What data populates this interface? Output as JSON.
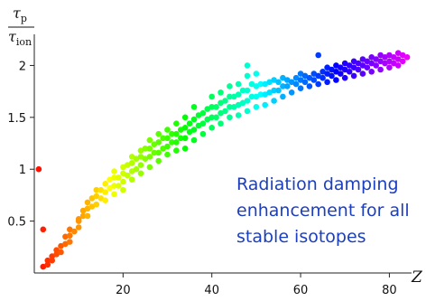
{
  "chart_data": {
    "type": "scatter",
    "title": "",
    "xlabel": "Z",
    "ylabel": {
      "numerator": "τ",
      "numerator_sub": "p",
      "denominator": "τ",
      "denominator_sub": "ion"
    },
    "xlim": [
      0,
      85
    ],
    "ylim": [
      0,
      2.3
    ],
    "x_ticks": [
      20,
      40,
      60,
      80
    ],
    "y_ticks": [
      0.5,
      1,
      1.5,
      2
    ],
    "grid": false,
    "annotation": [
      "Radiation damping",
      "enhancement for all",
      "stable isotopes"
    ],
    "color_by": "x (rainbow hue: red at low Z to magenta at high Z)",
    "series": [
      {
        "points": [
          [
            1,
            1.0
          ],
          [
            2,
            0.42
          ],
          [
            2,
            0.06
          ],
          [
            3,
            0.08
          ],
          [
            3,
            0.12
          ],
          [
            4,
            0.12
          ],
          [
            4,
            0.16
          ],
          [
            5,
            0.18
          ],
          [
            5,
            0.22
          ],
          [
            6,
            0.2
          ],
          [
            6,
            0.26
          ],
          [
            7,
            0.28
          ],
          [
            7,
            0.35
          ],
          [
            8,
            0.3
          ],
          [
            8,
            0.36
          ],
          [
            8,
            0.42
          ],
          [
            9,
            0.4
          ],
          [
            10,
            0.44
          ],
          [
            10,
            0.5
          ],
          [
            10,
            0.52
          ],
          [
            11,
            0.55
          ],
          [
            11,
            0.6
          ],
          [
            12,
            0.55
          ],
          [
            12,
            0.62
          ],
          [
            12,
            0.68
          ],
          [
            13,
            0.64
          ],
          [
            13,
            0.72
          ],
          [
            14,
            0.66
          ],
          [
            14,
            0.74
          ],
          [
            14,
            0.8
          ],
          [
            15,
            0.72
          ],
          [
            15,
            0.8
          ],
          [
            16,
            0.7
          ],
          [
            16,
            0.78
          ],
          [
            16,
            0.86
          ],
          [
            17,
            0.82
          ],
          [
            17,
            0.9
          ],
          [
            18,
            0.76
          ],
          [
            18,
            0.84
          ],
          [
            18,
            0.92
          ],
          [
            18,
            0.98
          ],
          [
            19,
            0.84
          ],
          [
            19,
            0.92
          ],
          [
            20,
            0.8
          ],
          [
            20,
            0.88
          ],
          [
            20,
            0.96
          ],
          [
            20,
            1.02
          ],
          [
            21,
            0.94
          ],
          [
            21,
            1.04
          ],
          [
            22,
            0.9
          ],
          [
            22,
            0.98
          ],
          [
            22,
            1.06
          ],
          [
            22,
            1.12
          ],
          [
            23,
            1.0
          ],
          [
            23,
            1.1
          ],
          [
            24,
            0.96
          ],
          [
            24,
            1.04
          ],
          [
            24,
            1.12
          ],
          [
            24,
            1.18
          ],
          [
            25,
            1.1
          ],
          [
            25,
            1.2
          ],
          [
            26,
            1.02
          ],
          [
            26,
            1.12
          ],
          [
            26,
            1.2
          ],
          [
            26,
            1.28
          ],
          [
            27,
            1.16
          ],
          [
            27,
            1.24
          ],
          [
            28,
            1.08
          ],
          [
            28,
            1.16
          ],
          [
            28,
            1.26
          ],
          [
            28,
            1.34
          ],
          [
            29,
            1.2
          ],
          [
            29,
            1.3
          ],
          [
            30,
            1.14
          ],
          [
            30,
            1.22
          ],
          [
            30,
            1.3
          ],
          [
            30,
            1.38
          ],
          [
            31,
            1.26
          ],
          [
            31,
            1.34
          ],
          [
            32,
            1.18
          ],
          [
            32,
            1.26
          ],
          [
            32,
            1.34
          ],
          [
            32,
            1.44
          ],
          [
            33,
            1.3
          ],
          [
            33,
            1.38
          ],
          [
            34,
            1.2
          ],
          [
            34,
            1.3
          ],
          [
            34,
            1.4
          ],
          [
            34,
            1.5
          ],
          [
            35,
            1.36
          ],
          [
            35,
            1.44
          ],
          [
            36,
            1.28
          ],
          [
            36,
            1.38
          ],
          [
            36,
            1.48
          ],
          [
            36,
            1.6
          ],
          [
            37,
            1.42
          ],
          [
            37,
            1.52
          ],
          [
            38,
            1.34
          ],
          [
            38,
            1.44
          ],
          [
            38,
            1.54
          ],
          [
            39,
            1.48
          ],
          [
            39,
            1.58
          ],
          [
            40,
            1.4
          ],
          [
            40,
            1.5
          ],
          [
            40,
            1.6
          ],
          [
            40,
            1.7
          ],
          [
            41,
            1.5
          ],
          [
            41,
            1.6
          ],
          [
            42,
            1.44
          ],
          [
            42,
            1.54
          ],
          [
            42,
            1.64
          ],
          [
            42,
            1.74
          ],
          [
            43,
            1.56
          ],
          [
            43,
            1.66
          ],
          [
            44,
            1.5
          ],
          [
            44,
            1.6
          ],
          [
            44,
            1.7
          ],
          [
            44,
            1.8
          ],
          [
            45,
            1.6
          ],
          [
            45,
            1.7
          ],
          [
            46,
            1.52
          ],
          [
            46,
            1.62
          ],
          [
            46,
            1.72
          ],
          [
            46,
            1.82
          ],
          [
            47,
            1.64
          ],
          [
            47,
            1.76
          ],
          [
            48,
            1.56
          ],
          [
            48,
            1.66
          ],
          [
            48,
            1.76
          ],
          [
            48,
            1.9
          ],
          [
            48,
            2.0
          ],
          [
            49,
            1.7
          ],
          [
            49,
            1.82
          ],
          [
            50,
            1.6
          ],
          [
            50,
            1.7
          ],
          [
            50,
            1.8
          ],
          [
            50,
            1.92
          ],
          [
            51,
            1.72
          ],
          [
            51,
            1.82
          ],
          [
            52,
            1.62
          ],
          [
            52,
            1.72
          ],
          [
            52,
            1.82
          ],
          [
            53,
            1.74
          ],
          [
            53,
            1.84
          ],
          [
            54,
            1.66
          ],
          [
            54,
            1.76
          ],
          [
            54,
            1.86
          ],
          [
            55,
            1.76
          ],
          [
            55,
            1.84
          ],
          [
            56,
            1.7
          ],
          [
            56,
            1.8
          ],
          [
            56,
            1.88
          ],
          [
            57,
            1.8
          ],
          [
            57,
            1.86
          ],
          [
            58,
            1.74
          ],
          [
            58,
            1.84
          ],
          [
            59,
            1.82
          ],
          [
            59,
            1.88
          ],
          [
            60,
            1.78
          ],
          [
            60,
            1.86
          ],
          [
            60,
            1.92
          ],
          [
            61,
            1.84
          ],
          [
            61,
            1.9
          ],
          [
            62,
            1.8
          ],
          [
            62,
            1.88
          ],
          [
            63,
            1.86
          ],
          [
            63,
            1.92
          ],
          [
            64,
            1.82
          ],
          [
            64,
            1.9
          ],
          [
            64,
            2.1
          ],
          [
            65,
            1.88
          ],
          [
            65,
            1.94
          ],
          [
            66,
            1.84
          ],
          [
            66,
            1.92
          ],
          [
            66,
            1.98
          ],
          [
            67,
            1.9
          ],
          [
            67,
            1.96
          ],
          [
            68,
            1.86
          ],
          [
            68,
            1.94
          ],
          [
            68,
            2.0
          ],
          [
            69,
            1.92
          ],
          [
            69,
            1.98
          ],
          [
            70,
            1.88
          ],
          [
            70,
            1.96
          ],
          [
            70,
            2.02
          ],
          [
            71,
            1.94
          ],
          [
            71,
            2.0
          ],
          [
            72,
            1.9
          ],
          [
            72,
            1.98
          ],
          [
            72,
            2.04
          ],
          [
            73,
            1.96
          ],
          [
            73,
            2.02
          ],
          [
            74,
            1.92
          ],
          [
            74,
            2.0
          ],
          [
            74,
            2.06
          ],
          [
            75,
            1.98
          ],
          [
            75,
            2.04
          ],
          [
            76,
            1.94
          ],
          [
            76,
            2.02
          ],
          [
            76,
            2.08
          ],
          [
            77,
            2.0
          ],
          [
            77,
            2.06
          ],
          [
            78,
            1.96
          ],
          [
            78,
            2.04
          ],
          [
            78,
            2.1
          ],
          [
            79,
            2.02
          ],
          [
            79,
            2.08
          ],
          [
            80,
            1.98
          ],
          [
            80,
            2.04
          ],
          [
            80,
            2.1
          ],
          [
            81,
            2.02
          ],
          [
            81,
            2.08
          ],
          [
            82,
            2.0
          ],
          [
            82,
            2.06
          ],
          [
            82,
            2.12
          ],
          [
            83,
            2.04
          ],
          [
            83,
            2.1
          ],
          [
            84,
            2.08
          ]
        ]
      }
    ]
  }
}
